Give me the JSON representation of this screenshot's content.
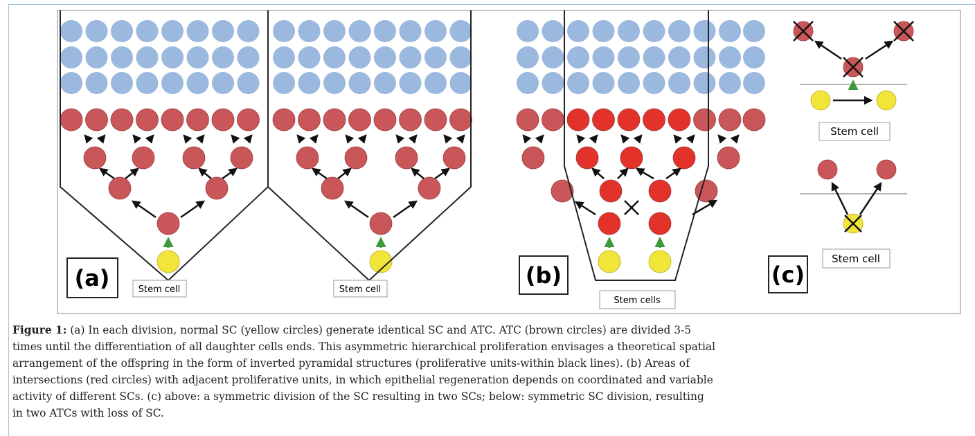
{
  "figure": {
    "panel_a": {
      "label": "(a)",
      "stem_label_1": "Stem cell",
      "stem_label_2": "Stem cell"
    },
    "panel_b": {
      "label": "(b)",
      "stem_label": "Stem cells"
    },
    "panel_c": {
      "label": "(c)",
      "stem_label_top": "Stem cell",
      "stem_label_bottom": "Stem cell"
    }
  },
  "caption": {
    "label": "Figure 1:",
    "lines": [
      "(a) In each division, normal SC (yellow circles) generate identical SC and ATC. ATC (brown circles) are divided 3-5",
      "times until the differentiation of all daughter cells ends. This asymmetric hierarchical proliferation envisages a theoretical spatial",
      "arrangement of the offspring in the form of inverted pyramidal structures (proliferative units-within black lines). (b) Areas of",
      "intersections (red circles) with adjacent proliferative units, in which epithelial regeneration depends on coordinated and variable",
      "activity of different SCs. (c) above: a symmetric division of the SC resulting in two SCs; below: symmetric SC division, resulting",
      "in two ATCs with loss of SC."
    ]
  }
}
